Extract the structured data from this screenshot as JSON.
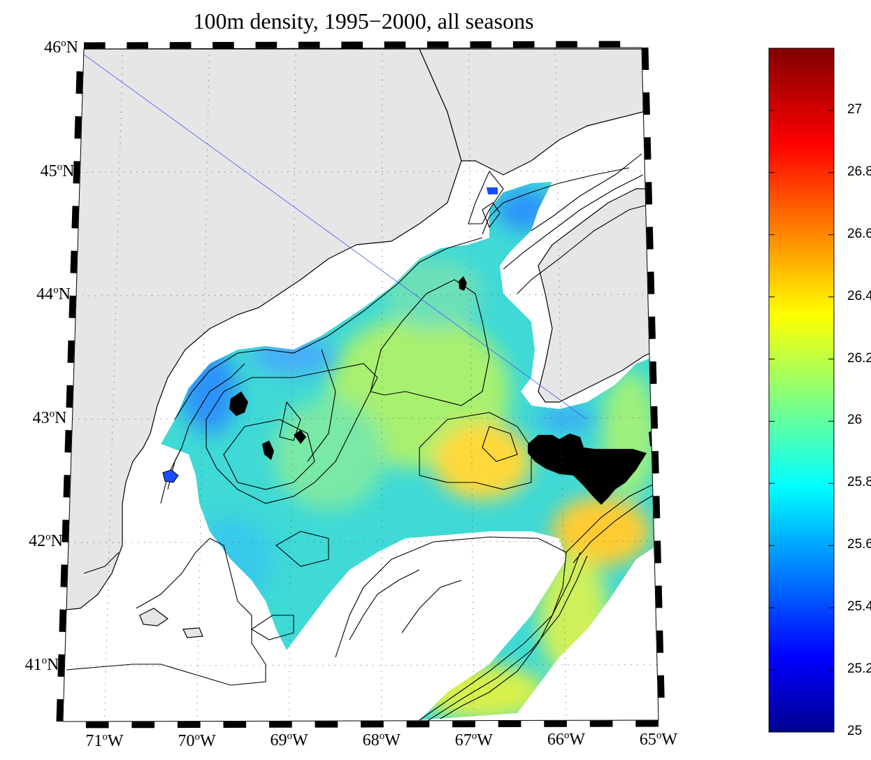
{
  "title": "100m density, 1995−2000, all seasons",
  "map": {
    "lat_labels": [
      {
        "text": "46",
        "deg": "o",
        "hemi": "N",
        "lat": 46
      },
      {
        "text": "45",
        "deg": "o",
        "hemi": "N",
        "lat": 45
      },
      {
        "text": "44",
        "deg": "o",
        "hemi": "N",
        "lat": 44
      },
      {
        "text": "43",
        "deg": "o",
        "hemi": "N",
        "lat": 43
      },
      {
        "text": "42",
        "deg": "o",
        "hemi": "N",
        "lat": 42
      },
      {
        "text": "41",
        "deg": "o",
        "hemi": "N",
        "lat": 41
      }
    ],
    "lon_labels": [
      {
        "text": "71",
        "deg": "o",
        "hemi": "W",
        "lon": -71
      },
      {
        "text": "70",
        "deg": "o",
        "hemi": "W",
        "lon": -70
      },
      {
        "text": "69",
        "deg": "o",
        "hemi": "W",
        "lon": -69
      },
      {
        "text": "68",
        "deg": "o",
        "hemi": "W",
        "lon": -68
      },
      {
        "text": "67",
        "deg": "o",
        "hemi": "W",
        "lon": -67
      },
      {
        "text": "66",
        "deg": "o",
        "hemi": "W",
        "lon": -66
      },
      {
        "text": "65",
        "deg": "o",
        "hemi": "W",
        "lon": -65
      }
    ],
    "land_color": "#e6e6e6",
    "grid": "dotted"
  },
  "colorbar": {
    "min": 25,
    "max": 27.2,
    "ticks": [
      "27",
      "26.8",
      "26.6",
      "26.4",
      "26.2",
      "26",
      "25.8",
      "25.6",
      "25.4",
      "25.2",
      "25"
    ],
    "colormap": "jet"
  }
}
